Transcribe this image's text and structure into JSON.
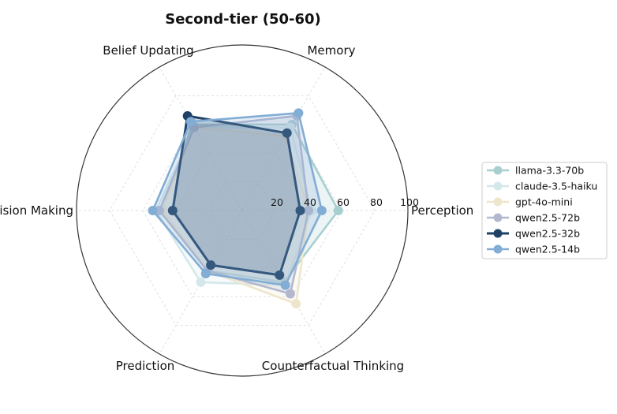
{
  "chart_data": {
    "type": "radar",
    "title": "Second-tier (50-60)",
    "axes": [
      "Perception",
      "Memory",
      "Belief Updating",
      "Decision Making",
      "Prediction",
      "Counterfactual Thinking"
    ],
    "rticks": [
      20,
      40,
      60,
      80,
      100
    ],
    "rlim": [
      0,
      100
    ],
    "grid": true,
    "legend_position": "right",
    "series": [
      {
        "name": "llama-3.3-70b",
        "color": "#a8cfd0",
        "values": [
          58,
          60,
          60,
          48,
          42,
          50
        ]
      },
      {
        "name": "claude-3.5-haiku",
        "color": "#d4e8ec",
        "values": [
          42,
          58,
          58,
          52,
          50,
          52
        ]
      },
      {
        "name": "gpt-4o-mini",
        "color": "#eee6cc",
        "values": [
          40,
          52,
          58,
          48,
          42,
          65
        ]
      },
      {
        "name": "qwen2.5-72b",
        "color": "#b3b8cf",
        "values": [
          40,
          66,
          58,
          50,
          42,
          58
        ]
      },
      {
        "name": "qwen2.5-32b",
        "color": "#1f4166",
        "values": [
          35,
          54,
          66,
          42,
          38,
          45
        ]
      },
      {
        "name": "qwen2.5-14b",
        "color": "#82add4",
        "values": [
          48,
          68,
          62,
          54,
          44,
          52
        ]
      }
    ]
  }
}
